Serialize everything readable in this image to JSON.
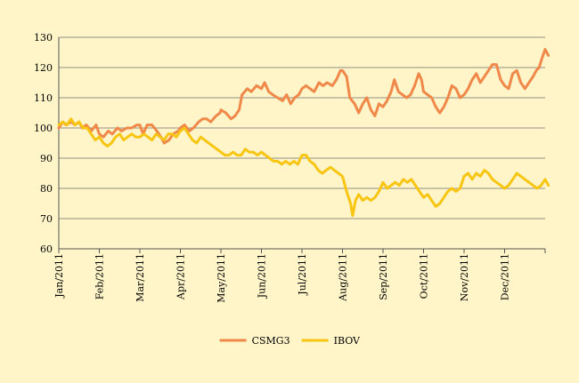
{
  "chart_data": {
    "type": "line",
    "title": "",
    "xlabel": "",
    "ylabel": "",
    "ylim": [
      60,
      130
    ],
    "yticks": [
      60,
      70,
      80,
      90,
      100,
      110,
      120,
      130
    ],
    "x_range": [
      0,
      12
    ],
    "categories": [
      "Jan/2011",
      "Feb/2011",
      "Mar/2011",
      "Apr/2011",
      "May/2011",
      "Jun/2011",
      "Jul/2011",
      "Aug/2011",
      "Sep/2011",
      "Oct/2011",
      "Nov/2011",
      "Dec/2011"
    ],
    "grid": true,
    "legend_position": "bottom-center",
    "series": [
      {
        "name": "CSMG3",
        "color": "#F0884A",
        "points": [
          [
            0.0,
            100
          ],
          [
            0.1,
            102
          ],
          [
            0.18,
            101
          ],
          [
            0.3,
            102
          ],
          [
            0.4,
            101
          ],
          [
            0.5,
            102
          ],
          [
            0.58,
            100
          ],
          [
            0.68,
            101
          ],
          [
            0.8,
            99
          ],
          [
            0.92,
            101
          ],
          [
            1.0,
            98
          ],
          [
            1.1,
            97
          ],
          [
            1.22,
            99
          ],
          [
            1.32,
            98
          ],
          [
            1.45,
            100
          ],
          [
            1.55,
            99
          ],
          [
            1.68,
            100
          ],
          [
            1.8,
            100
          ],
          [
            1.92,
            101
          ],
          [
            2.0,
            101
          ],
          [
            2.08,
            98
          ],
          [
            2.18,
            101
          ],
          [
            2.3,
            101
          ],
          [
            2.42,
            99
          ],
          [
            2.52,
            97
          ],
          [
            2.6,
            95
          ],
          [
            2.72,
            96
          ],
          [
            2.82,
            98
          ],
          [
            2.95,
            99
          ],
          [
            3.0,
            100
          ],
          [
            3.1,
            101
          ],
          [
            3.22,
            99
          ],
          [
            3.32,
            100
          ],
          [
            3.45,
            102
          ],
          [
            3.55,
            103
          ],
          [
            3.65,
            103
          ],
          [
            3.75,
            102
          ],
          [
            3.88,
            104
          ],
          [
            3.98,
            105
          ],
          [
            4.0,
            106
          ],
          [
            4.12,
            105
          ],
          [
            4.25,
            103
          ],
          [
            4.35,
            104
          ],
          [
            4.45,
            106
          ],
          [
            4.52,
            111
          ],
          [
            4.65,
            113
          ],
          [
            4.75,
            112
          ],
          [
            4.88,
            114
          ],
          [
            5.0,
            113
          ],
          [
            5.08,
            115
          ],
          [
            5.18,
            112
          ],
          [
            5.28,
            111
          ],
          [
            5.4,
            110
          ],
          [
            5.52,
            109
          ],
          [
            5.62,
            111
          ],
          [
            5.72,
            108
          ],
          [
            5.82,
            110
          ],
          [
            5.92,
            111
          ],
          [
            6.0,
            113
          ],
          [
            6.1,
            114
          ],
          [
            6.2,
            113
          ],
          [
            6.3,
            112
          ],
          [
            6.42,
            115
          ],
          [
            6.52,
            114
          ],
          [
            6.62,
            115
          ],
          [
            6.75,
            114
          ],
          [
            6.85,
            116
          ],
          [
            6.95,
            119
          ],
          [
            7.0,
            119
          ],
          [
            7.1,
            117
          ],
          [
            7.18,
            110
          ],
          [
            7.3,
            108
          ],
          [
            7.4,
            105
          ],
          [
            7.5,
            108
          ],
          [
            7.6,
            110
          ],
          [
            7.7,
            106
          ],
          [
            7.8,
            104
          ],
          [
            7.9,
            108
          ],
          [
            8.0,
            107
          ],
          [
            8.1,
            109
          ],
          [
            8.2,
            112
          ],
          [
            8.28,
            116
          ],
          [
            8.38,
            112
          ],
          [
            8.48,
            111
          ],
          [
            8.58,
            110
          ],
          [
            8.68,
            111
          ],
          [
            8.78,
            114
          ],
          [
            8.88,
            118
          ],
          [
            8.95,
            116
          ],
          [
            9.0,
            112
          ],
          [
            9.1,
            111
          ],
          [
            9.2,
            110
          ],
          [
            9.3,
            107
          ],
          [
            9.4,
            105
          ],
          [
            9.5,
            107
          ],
          [
            9.6,
            110
          ],
          [
            9.7,
            114
          ],
          [
            9.8,
            113
          ],
          [
            9.9,
            110
          ],
          [
            10.0,
            111
          ],
          [
            10.1,
            113
          ],
          [
            10.2,
            116
          ],
          [
            10.3,
            118
          ],
          [
            10.4,
            115
          ],
          [
            10.5,
            117
          ],
          [
            10.6,
            119
          ],
          [
            10.7,
            121
          ],
          [
            10.8,
            121
          ],
          [
            10.9,
            116
          ],
          [
            11.0,
            114
          ],
          [
            11.1,
            113
          ],
          [
            11.2,
            118
          ],
          [
            11.3,
            119
          ],
          [
            11.4,
            115
          ],
          [
            11.5,
            113
          ],
          [
            11.6,
            115
          ],
          [
            11.7,
            117
          ],
          [
            11.78,
            119
          ],
          [
            11.85,
            120
          ],
          [
            11.92,
            123
          ],
          [
            12.0,
            126
          ],
          [
            12.08,
            124
          ]
        ]
      },
      {
        "name": "IBOV",
        "color": "#F8C612",
        "points": [
          [
            0.0,
            101
          ],
          [
            0.1,
            102
          ],
          [
            0.2,
            101
          ],
          [
            0.3,
            103
          ],
          [
            0.4,
            101
          ],
          [
            0.5,
            102
          ],
          [
            0.6,
            100
          ],
          [
            0.7,
            100
          ],
          [
            0.8,
            98
          ],
          [
            0.9,
            96
          ],
          [
            1.0,
            97
          ],
          [
            1.1,
            95
          ],
          [
            1.2,
            94
          ],
          [
            1.3,
            95
          ],
          [
            1.4,
            97
          ],
          [
            1.5,
            98
          ],
          [
            1.6,
            96
          ],
          [
            1.7,
            97
          ],
          [
            1.8,
            98
          ],
          [
            1.9,
            97
          ],
          [
            2.0,
            97
          ],
          [
            2.1,
            98
          ],
          [
            2.2,
            97
          ],
          [
            2.3,
            96
          ],
          [
            2.4,
            98
          ],
          [
            2.5,
            97
          ],
          [
            2.6,
            96
          ],
          [
            2.7,
            98
          ],
          [
            2.8,
            98
          ],
          [
            2.9,
            97
          ],
          [
            3.0,
            99
          ],
          [
            3.1,
            100
          ],
          [
            3.2,
            98
          ],
          [
            3.3,
            96
          ],
          [
            3.4,
            95
          ],
          [
            3.5,
            97
          ],
          [
            3.6,
            96
          ],
          [
            3.7,
            95
          ],
          [
            3.8,
            94
          ],
          [
            3.9,
            93
          ],
          [
            4.0,
            92
          ],
          [
            4.1,
            91
          ],
          [
            4.2,
            91
          ],
          [
            4.3,
            92
          ],
          [
            4.4,
            91
          ],
          [
            4.5,
            91
          ],
          [
            4.6,
            93
          ],
          [
            4.7,
            92
          ],
          [
            4.8,
            92
          ],
          [
            4.9,
            91
          ],
          [
            5.0,
            92
          ],
          [
            5.1,
            91
          ],
          [
            5.2,
            90
          ],
          [
            5.3,
            89
          ],
          [
            5.4,
            89
          ],
          [
            5.5,
            88
          ],
          [
            5.6,
            89
          ],
          [
            5.7,
            88
          ],
          [
            5.8,
            89
          ],
          [
            5.9,
            88
          ],
          [
            6.0,
            91
          ],
          [
            6.1,
            91
          ],
          [
            6.2,
            89
          ],
          [
            6.3,
            88
          ],
          [
            6.4,
            86
          ],
          [
            6.5,
            85
          ],
          [
            6.6,
            86
          ],
          [
            6.7,
            87
          ],
          [
            6.8,
            86
          ],
          [
            6.9,
            85
          ],
          [
            7.0,
            84
          ],
          [
            7.1,
            79
          ],
          [
            7.2,
            75
          ],
          [
            7.25,
            71
          ],
          [
            7.32,
            76
          ],
          [
            7.4,
            78
          ],
          [
            7.5,
            76
          ],
          [
            7.6,
            77
          ],
          [
            7.7,
            76
          ],
          [
            7.8,
            77
          ],
          [
            7.9,
            79
          ],
          [
            8.0,
            82
          ],
          [
            8.1,
            80
          ],
          [
            8.2,
            81
          ],
          [
            8.3,
            82
          ],
          [
            8.4,
            81
          ],
          [
            8.5,
            83
          ],
          [
            8.6,
            82
          ],
          [
            8.7,
            83
          ],
          [
            8.8,
            81
          ],
          [
            8.9,
            79
          ],
          [
            9.0,
            77
          ],
          [
            9.1,
            78
          ],
          [
            9.2,
            76
          ],
          [
            9.3,
            74
          ],
          [
            9.4,
            75
          ],
          [
            9.5,
            77
          ],
          [
            9.6,
            79
          ],
          [
            9.7,
            80
          ],
          [
            9.8,
            79
          ],
          [
            9.9,
            80
          ],
          [
            10.0,
            84
          ],
          [
            10.1,
            85
          ],
          [
            10.2,
            83
          ],
          [
            10.3,
            85
          ],
          [
            10.4,
            84
          ],
          [
            10.5,
            86
          ],
          [
            10.6,
            85
          ],
          [
            10.7,
            83
          ],
          [
            10.8,
            82
          ],
          [
            10.9,
            81
          ],
          [
            11.0,
            80
          ],
          [
            11.1,
            81
          ],
          [
            11.2,
            83
          ],
          [
            11.3,
            85
          ],
          [
            11.4,
            84
          ],
          [
            11.5,
            83
          ],
          [
            11.6,
            82
          ],
          [
            11.7,
            81
          ],
          [
            11.8,
            80
          ],
          [
            11.9,
            81
          ],
          [
            12.0,
            83
          ],
          [
            12.08,
            81
          ]
        ]
      }
    ]
  }
}
